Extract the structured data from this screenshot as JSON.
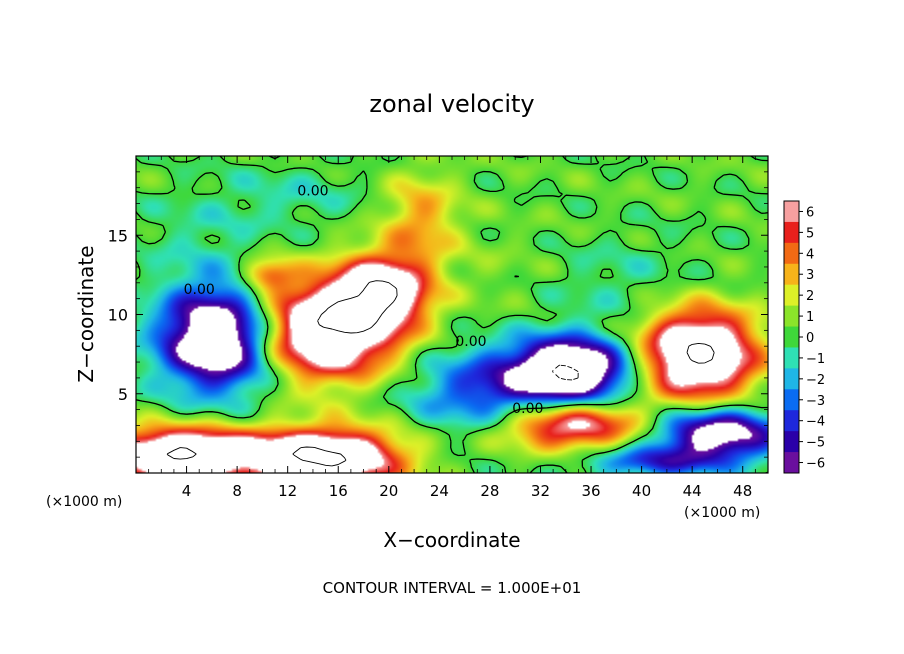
{
  "chart_data": {
    "type": "heatmap",
    "title": "zonal velocity",
    "xlabel": "X−coordinate",
    "ylabel": "Z−coordinate",
    "x_units": "(×1000 m)",
    "y_units": "(×1000 m)",
    "xlim": [
      0,
      50
    ],
    "ylim": [
      0,
      20
    ],
    "x_ticks": [
      4,
      8,
      12,
      16,
      20,
      24,
      28,
      32,
      36,
      40,
      44,
      48
    ],
    "y_ticks": [
      5,
      10,
      15
    ],
    "footer": "CONTOUR INTERVAL =  1.000E+01",
    "colorbar": {
      "min": -6,
      "max": 6,
      "tick_labels": [
        "6",
        "5",
        "4",
        "3",
        "2",
        "1",
        "0",
        "−1",
        "−2",
        "−3",
        "−4",
        "−5",
        "−6"
      ],
      "colors": [
        "#6a0f9e",
        "#2a00a8",
        "#1e28dc",
        "#0a6cf2",
        "#1fb6e6",
        "#2fe0b4",
        "#3fd83a",
        "#8be42a",
        "#ddf028",
        "#f7b31a",
        "#f26a14",
        "#e8201c",
        "#f7a0a0"
      ]
    },
    "contour_labels": [
      "0.00",
      "0.00",
      "0.00",
      "0.00"
    ],
    "background_value": 0.3,
    "features": [
      {
        "x": 6.5,
        "z": 8.5,
        "rx": 4.5,
        "rz": 3.2,
        "value": -10
      },
      {
        "x": 3.5,
        "z": 1.2,
        "rx": 6.0,
        "rz": 1.6,
        "value": 10
      },
      {
        "x": 15.0,
        "z": 1.0,
        "rx": 6.0,
        "rz": 1.8,
        "value": 10
      },
      {
        "x": 15.0,
        "z": 9.0,
        "rx": 5.5,
        "rz": 3.0,
        "value": 10
      },
      {
        "x": 19.5,
        "z": 11.5,
        "rx": 3.5,
        "rz": 2.2,
        "value": 8
      },
      {
        "x": 22.5,
        "z": 16.0,
        "rx": 3.0,
        "rz": 3.0,
        "value": 3
      },
      {
        "x": 10.5,
        "z": 12.5,
        "rx": 2.0,
        "rz": 1.0,
        "value": 4
      },
      {
        "x": 28.0,
        "z": 5.0,
        "rx": 6.0,
        "rz": 2.8,
        "value": -4.5
      },
      {
        "x": 34.5,
        "z": 6.5,
        "rx": 4.5,
        "rz": 2.0,
        "value": -10
      },
      {
        "x": 34.0,
        "z": 3.0,
        "rx": 6.0,
        "rz": 1.6,
        "value": 7
      },
      {
        "x": 44.5,
        "z": 7.5,
        "rx": 4.5,
        "rz": 2.8,
        "value": 10
      },
      {
        "x": 46.0,
        "z": 2.5,
        "rx": 5.0,
        "rz": 1.6,
        "value": -8
      },
      {
        "x": 41.0,
        "z": 0.7,
        "rx": 6.0,
        "rz": 1.0,
        "value": -4
      },
      {
        "x": 37.5,
        "z": 12.0,
        "rx": 7.0,
        "rz": 3.0,
        "value": -1.1
      },
      {
        "x": 30.0,
        "z": 12.5,
        "rx": 6.0,
        "rz": 3.0,
        "value": 0.6
      },
      {
        "x": 12.5,
        "z": 17.5,
        "rx": 6.0,
        "rz": 2.0,
        "value": -1.1
      },
      {
        "x": 5.0,
        "z": 15.0,
        "rx": 5.0,
        "rz": 3.0,
        "value": -0.9
      }
    ]
  }
}
